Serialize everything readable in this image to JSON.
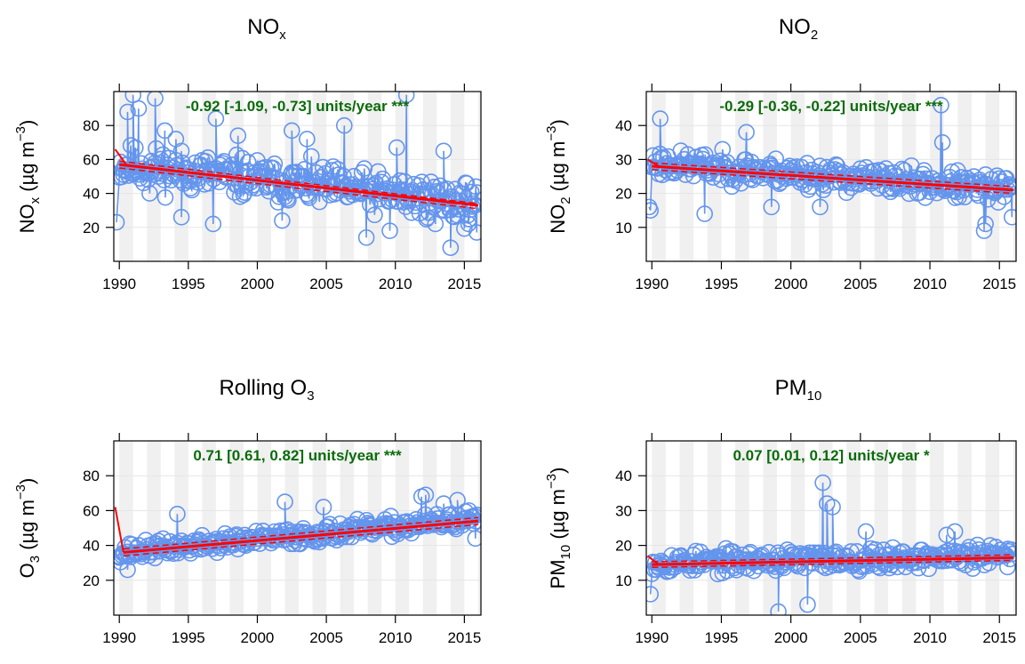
{
  "colors": {
    "points": "#6495ed",
    "trend": "#ff0000",
    "annotation": "#006400",
    "year_band": "#f0f0f0",
    "grid": "#e6e6e6"
  },
  "chart_data": [
    {
      "type": "scatter",
      "title_main": "NO",
      "title_sub": "x",
      "ylabel_main": "NO",
      "ylabel_sub": "x",
      "ylabel_unit": " (µg m",
      "ylabel_exp": "−3",
      "ylabel_close": ")",
      "annotation": "-0.92 [-1.09, -0.73] units/year ***",
      "xlim": [
        1989.6,
        2016.2
      ],
      "ylim": [
        0,
        100
      ],
      "xticks": [
        1990,
        1995,
        2000,
        2005,
        2010,
        2015
      ],
      "yticks": [
        20,
        40,
        60,
        80
      ],
      "trend": {
        "start": [
          1990,
          57
        ],
        "end": [
          2016,
          33
        ],
        "upper": [
          [
            1990,
            59
          ],
          [
            2016,
            34
          ]
        ],
        "lower": [
          [
            1990,
            55
          ],
          [
            2016,
            31
          ]
        ],
        "spike": [
          [
            1989.7,
            66
          ],
          [
            1990.5,
            57
          ]
        ]
      },
      "series_seed": 11,
      "series": {
        "start": 57,
        "end": 34,
        "noise": 12,
        "spikes": [
          [
            1989.8,
            23
          ],
          [
            1990.3,
            51
          ],
          [
            1990.6,
            88
          ],
          [
            1991.0,
            98
          ],
          [
            1991.4,
            90
          ],
          [
            1992.2,
            40
          ],
          [
            1992.6,
            96
          ],
          [
            1993.3,
            77
          ],
          [
            1994.1,
            72
          ],
          [
            1994.5,
            26
          ],
          [
            1996.8,
            22
          ],
          [
            1997.0,
            84
          ],
          [
            1998.6,
            74
          ],
          [
            2001.8,
            24
          ],
          [
            2002.5,
            77
          ],
          [
            2003.6,
            72
          ],
          [
            2006.3,
            80
          ],
          [
            2007.9,
            14
          ],
          [
            2009.6,
            18
          ],
          [
            2010.1,
            67
          ],
          [
            2010.8,
            98
          ],
          [
            2012.9,
            22
          ],
          [
            2013.5,
            65
          ],
          [
            2014.0,
            8
          ],
          [
            2015.3,
            22
          ],
          [
            2015.9,
            17
          ]
        ]
      }
    },
    {
      "type": "scatter",
      "title_main": "NO",
      "title_sub": "2",
      "ylabel_main": "NO",
      "ylabel_sub": "2",
      "ylabel_unit": " (µg m",
      "ylabel_exp": "−3",
      "ylabel_close": ")",
      "annotation": "-0.29 [-0.36, -0.22] units/year ***",
      "xlim": [
        1989.6,
        2016.2
      ],
      "ylim": [
        0,
        50
      ],
      "xticks": [
        1990,
        1995,
        2000,
        2005,
        2010,
        2015
      ],
      "yticks": [
        10,
        20,
        30,
        40
      ],
      "trend": {
        "start": [
          1990,
          28
        ],
        "end": [
          2016,
          21
        ],
        "upper": [
          [
            1990,
            29
          ],
          [
            2016,
            22
          ]
        ],
        "lower": [
          [
            1990,
            27
          ],
          [
            2016,
            20
          ]
        ],
        "spike": [
          [
            1989.7,
            30
          ],
          [
            1990.5,
            28
          ]
        ]
      },
      "series_seed": 23,
      "series": {
        "start": 29,
        "end": 21,
        "noise": 4,
        "spikes": [
          [
            1989.8,
            16
          ],
          [
            1989.9,
            15
          ],
          [
            1990.6,
            42
          ],
          [
            1993.8,
            14
          ],
          [
            1996.8,
            38
          ],
          [
            1998.6,
            16
          ],
          [
            2002.1,
            16
          ],
          [
            2010.8,
            46
          ],
          [
            2010.9,
            35
          ],
          [
            2013.9,
            9
          ],
          [
            2014.0,
            11
          ],
          [
            2015.9,
            13
          ]
        ]
      }
    },
    {
      "type": "scatter",
      "title_main": "Rolling O",
      "title_sub": "3",
      "ylabel_main": "O",
      "ylabel_sub": "3",
      "ylabel_unit": " (µg m",
      "ylabel_exp": "−3",
      "ylabel_close": ")",
      "annotation": "0.71 [0.61, 0.82] units/year ***",
      "xlim": [
        1989.6,
        2016.2
      ],
      "ylim": [
        0,
        100
      ],
      "xticks": [
        1990,
        1995,
        2000,
        2005,
        2010,
        2015
      ],
      "yticks": [
        20,
        40,
        60,
        80
      ],
      "trend": {
        "start": [
          1990.3,
          36
        ],
        "end": [
          2016,
          54
        ],
        "upper": [
          [
            1990.3,
            38
          ],
          [
            2016,
            56
          ]
        ],
        "lower": [
          [
            1990.3,
            34
          ],
          [
            2016,
            52
          ]
        ],
        "spike": [
          [
            1989.7,
            62
          ],
          [
            1990.3,
            36
          ]
        ]
      },
      "series_seed": 37,
      "series": {
        "start": 36,
        "end": 55,
        "noise": 5,
        "spikes": [
          [
            1990.0,
            33
          ],
          [
            1990.6,
            26
          ],
          [
            1994.2,
            58
          ],
          [
            2002.0,
            65
          ],
          [
            2004.8,
            62
          ],
          [
            2011.9,
            68
          ],
          [
            2012.2,
            69
          ],
          [
            2013.5,
            64
          ],
          [
            2014.5,
            66
          ],
          [
            2015.8,
            44
          ]
        ]
      }
    },
    {
      "type": "scatter",
      "title_main": "PM",
      "title_sub": "10",
      "ylabel_main": "PM",
      "ylabel_sub": "10",
      "ylabel_unit": " (µg m",
      "ylabel_exp": "−3",
      "ylabel_close": ")",
      "annotation": "0.07 [0.01, 0.12] units/year *",
      "xlim": [
        1989.6,
        2016.2
      ],
      "ylim": [
        0,
        50
      ],
      "xticks": [
        1990,
        1995,
        2000,
        2005,
        2010,
        2015
      ],
      "yticks": [
        10,
        20,
        30,
        40
      ],
      "trend": {
        "start": [
          1990,
          14.5
        ],
        "end": [
          2016,
          16.5
        ],
        "upper": [
          [
            1990,
            15.3
          ],
          [
            2016,
            17.3
          ]
        ],
        "lower": [
          [
            1990,
            13.7
          ],
          [
            2016,
            15.7
          ]
        ],
        "spike": [
          [
            1989.7,
            17
          ],
          [
            1990.5,
            14.5
          ]
        ]
      },
      "series_seed": 53,
      "series": {
        "start": 15,
        "end": 17,
        "noise": 3,
        "spikes": [
          [
            1989.9,
            6
          ],
          [
            1999.1,
            1
          ],
          [
            2001.2,
            3
          ],
          [
            2002.3,
            38
          ],
          [
            2002.6,
            32
          ],
          [
            2003.0,
            31
          ],
          [
            2005.4,
            24
          ],
          [
            2011.2,
            23
          ],
          [
            2011.8,
            24
          ],
          [
            2015.6,
            19
          ]
        ]
      }
    }
  ]
}
